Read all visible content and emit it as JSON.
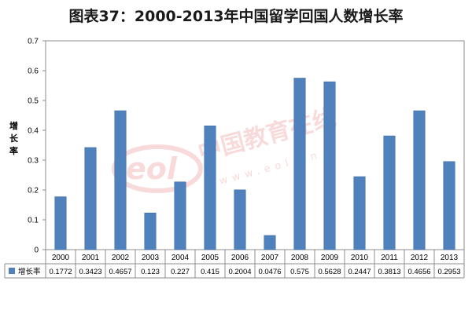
{
  "chart_data": {
    "type": "bar",
    "title": "图表37：2000-2013年中国留学回国人数增长率",
    "ylabel": "增长率",
    "ylim": [
      0,
      0.7
    ],
    "yticks": [
      "0",
      "0.1",
      "0.2",
      "0.3",
      "0.4",
      "0.5",
      "0.6",
      "0.7"
    ],
    "grid": false,
    "legend": "data-table-left",
    "categories": [
      "2000",
      "2001",
      "2002",
      "2003",
      "2004",
      "2005",
      "2006",
      "2007",
      "2008",
      "2009",
      "2010",
      "2011",
      "2012",
      "2013"
    ],
    "series": [
      {
        "name": "增长率",
        "color": "#4f81bd",
        "values": [
          0.1772,
          0.3423,
          0.4657,
          0.123,
          0.227,
          0.415,
          0.2004,
          0.0476,
          0.575,
          0.5628,
          0.2447,
          0.3813,
          0.4656,
          0.2953
        ],
        "labels": [
          "0.1772",
          "0.3423",
          "0.4657",
          "0.123",
          "0.227",
          "0.415",
          "0.2004",
          "0.0476",
          "0.575",
          "0.5628",
          "0.2447",
          "0.3813",
          "0.4656",
          "0.2953"
        ]
      }
    ]
  },
  "watermark": {
    "logo_text": "eol",
    "main_text": "中国教育在线",
    "sub_text": "www.eol.cn",
    "color": "#e05a5a"
  }
}
